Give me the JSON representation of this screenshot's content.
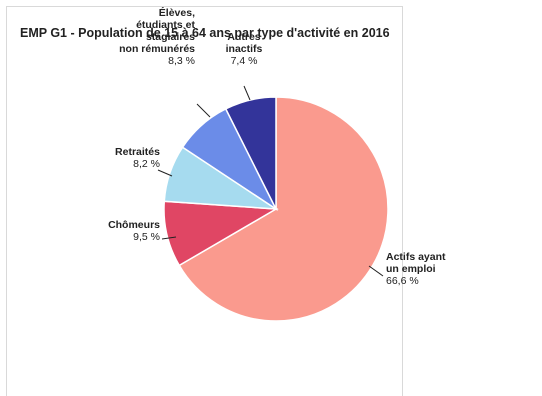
{
  "chart_data": {
    "type": "pie",
    "title": "EMP G1 - Population de 15 à 64 ans par type d'activité en 2016",
    "slices": [
      {
        "label_lines": [
          "Actifs ayant",
          "un emploi"
        ],
        "value": 66.6,
        "value_label": "66,6 %",
        "color": "#fa9a8e"
      },
      {
        "label_lines": [
          "Chômeurs"
        ],
        "value": 9.5,
        "value_label": "9,5 %",
        "color": "#e04664"
      },
      {
        "label_lines": [
          "Retraités"
        ],
        "value": 8.2,
        "value_label": "8,2 %",
        "color": "#a6dbef"
      },
      {
        "label_lines": [
          "Élèves,",
          "étudiants et",
          "stagiaires",
          "non rémunérés"
        ],
        "value": 8.3,
        "value_label": "8,3 %",
        "color": "#6b8ce8"
      },
      {
        "label_lines": [
          "Autres",
          "inactifs"
        ],
        "value": 7.4,
        "value_label": "7,4 %",
        "color": "#33349a"
      }
    ]
  }
}
